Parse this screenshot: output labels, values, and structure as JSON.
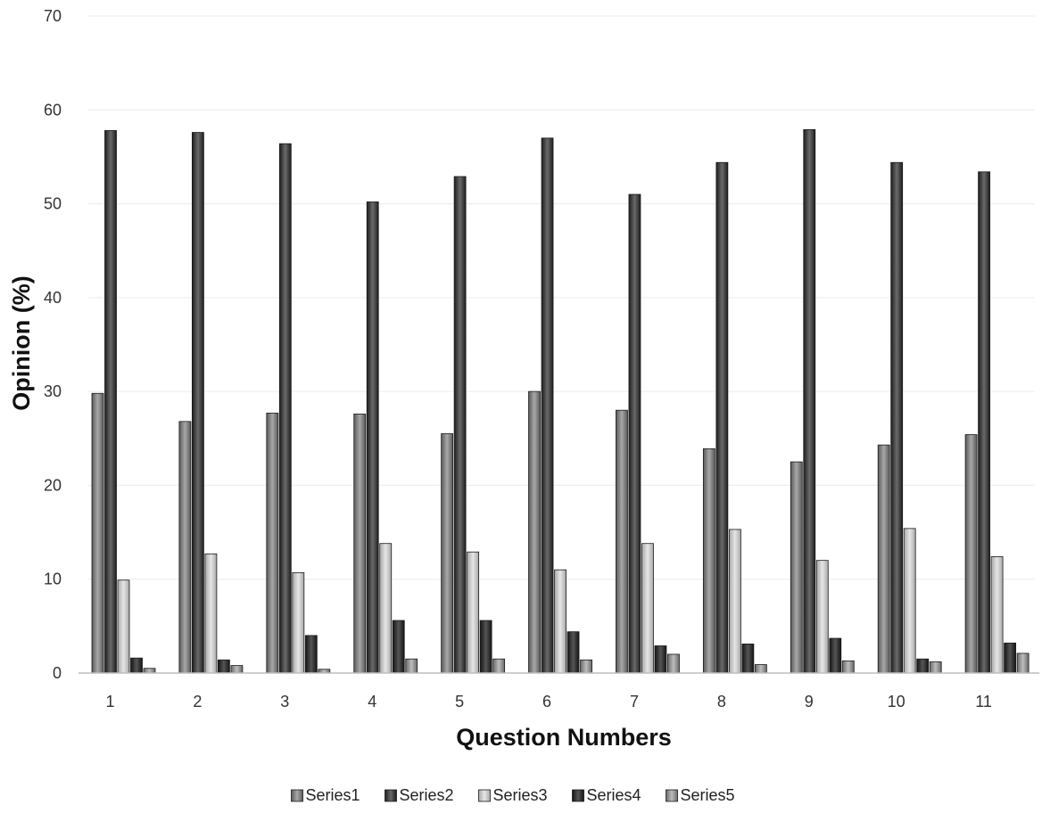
{
  "chart_data": {
    "type": "bar",
    "xlabel": "Question Numbers",
    "ylabel": "Opinion (%)",
    "ylim": [
      0,
      70
    ],
    "yticks": [
      0,
      10,
      20,
      30,
      40,
      50,
      60,
      70
    ],
    "grid": true,
    "legend_position": "bottom",
    "categories": [
      "1",
      "2",
      "3",
      "4",
      "5",
      "6",
      "7",
      "8",
      "9",
      "10",
      "11"
    ],
    "series": [
      {
        "name": "Series1",
        "color": "#8a8a8a",
        "values": [
          29.8,
          26.8,
          27.7,
          27.6,
          25.5,
          30.0,
          28.0,
          23.9,
          22.5,
          24.3,
          25.4
        ]
      },
      {
        "name": "Series2",
        "color": "#3c3c3c",
        "values": [
          57.8,
          57.6,
          56.4,
          50.2,
          52.9,
          57.0,
          51.0,
          54.4,
          57.9,
          54.4,
          53.4
        ]
      },
      {
        "name": "Series3",
        "color": "#c8c8c8",
        "values": [
          9.9,
          12.7,
          10.7,
          13.8,
          12.9,
          11.0,
          13.8,
          15.3,
          12.0,
          15.4,
          12.4
        ]
      },
      {
        "name": "Series4",
        "color": "#2e2e2e",
        "values": [
          1.6,
          1.4,
          4.0,
          5.6,
          5.6,
          4.4,
          2.9,
          3.1,
          3.7,
          1.5,
          3.2
        ]
      },
      {
        "name": "Series5",
        "color": "#9c9c9c",
        "values": [
          0.5,
          0.8,
          0.4,
          1.5,
          1.5,
          1.4,
          2.0,
          0.9,
          1.3,
          1.2,
          2.1
        ]
      }
    ]
  }
}
